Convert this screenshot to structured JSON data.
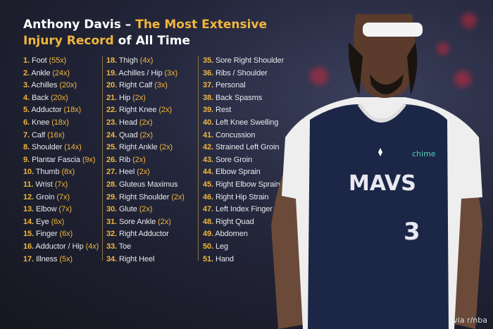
{
  "title": {
    "line1_white": "Anthony Davis – ",
    "line1_gold": "The Most Extensive",
    "line2_gold": "Injury Record",
    "line2_white": " of All Time"
  },
  "injuries": [
    {
      "rank": "1.",
      "name": "Foot",
      "count": "(55x)"
    },
    {
      "rank": "2.",
      "name": "Ankle",
      "count": "(24x)"
    },
    {
      "rank": "3.",
      "name": "Achilles",
      "count": "(20x)"
    },
    {
      "rank": "4.",
      "name": "Back",
      "count": "(20x)"
    },
    {
      "rank": "5.",
      "name": "Adductor",
      "count": "(18x)"
    },
    {
      "rank": "6.",
      "name": "Knee",
      "count": "(18x)"
    },
    {
      "rank": "7.",
      "name": "Calf",
      "count": "(16x)"
    },
    {
      "rank": "8.",
      "name": "Shoulder",
      "count": "(14x)"
    },
    {
      "rank": "9.",
      "name": "Plantar Fascia",
      "count": "(9x)"
    },
    {
      "rank": "10.",
      "name": "Thumb",
      "count": "(8x)"
    },
    {
      "rank": "11.",
      "name": "Wrist",
      "count": "(7x)"
    },
    {
      "rank": "12.",
      "name": "Groin",
      "count": "(7x)"
    },
    {
      "rank": "13.",
      "name": "Elbow",
      "count": "(7x)"
    },
    {
      "rank": "14.",
      "name": "Eye",
      "count": "(6x)"
    },
    {
      "rank": "15.",
      "name": "Finger",
      "count": "(6x)"
    },
    {
      "rank": "16.",
      "name": "Adductor / Hip",
      "count": "(4x)"
    },
    {
      "rank": "17.",
      "name": "Illness",
      "count": "(5x)"
    },
    {
      "rank": "18.",
      "name": "Thigh",
      "count": "(4x)"
    },
    {
      "rank": "19.",
      "name": "Achilles / Hip",
      "count": "(3x)"
    },
    {
      "rank": "20.",
      "name": "Right Calf",
      "count": "(3x)"
    },
    {
      "rank": "21.",
      "name": "Hip",
      "count": "(2x)"
    },
    {
      "rank": "22.",
      "name": "Right Knee",
      "count": "(2x)"
    },
    {
      "rank": "23.",
      "name": "Head",
      "count": "(2x)"
    },
    {
      "rank": "24.",
      "name": "Quad",
      "count": "(2x)"
    },
    {
      "rank": "25.",
      "name": "Right Ankle",
      "count": "(2x)"
    },
    {
      "rank": "26.",
      "name": "Rib",
      "count": "(2x)"
    },
    {
      "rank": "27.",
      "name": "Heel",
      "count": "(2x)"
    },
    {
      "rank": "28.",
      "name": "Gluteus Maximus",
      "count": ""
    },
    {
      "rank": "29.",
      "name": "Right Shoulder",
      "count": "(2x)"
    },
    {
      "rank": "30.",
      "name": "Glute",
      "count": "(2x)"
    },
    {
      "rank": "31.",
      "name": "Sore Ankle",
      "count": "(2x)"
    },
    {
      "rank": "32.",
      "name": "Right Adductor",
      "count": ""
    },
    {
      "rank": "33.",
      "name": "Toe",
      "count": ""
    },
    {
      "rank": "34.",
      "name": "Right Heel",
      "count": ""
    },
    {
      "rank": "35.",
      "name": "Sore Right Shoulder",
      "count": ""
    },
    {
      "rank": "36.",
      "name": "Ribs / Shoulder",
      "count": ""
    },
    {
      "rank": "37.",
      "name": "Personal",
      "count": ""
    },
    {
      "rank": "38.",
      "name": "Back Spasms",
      "count": ""
    },
    {
      "rank": "39.",
      "name": "Rest",
      "count": ""
    },
    {
      "rank": "40.",
      "name": "Left Knee Swelling",
      "count": ""
    },
    {
      "rank": "41.",
      "name": "Concussion",
      "count": ""
    },
    {
      "rank": "42.",
      "name": "Strained Left Groin",
      "count": ""
    },
    {
      "rank": "43.",
      "name": "Sore Groin",
      "count": ""
    },
    {
      "rank": "44.",
      "name": "Elbow Sprain",
      "count": ""
    },
    {
      "rank": "45.",
      "name": "Right Elbow Sprain",
      "count": ""
    },
    {
      "rank": "46.",
      "name": "Right Hip Strain",
      "count": ""
    },
    {
      "rank": "47.",
      "name": "Left Index Finger",
      "count": ""
    },
    {
      "rank": "48.",
      "name": "Right Quad",
      "count": ""
    },
    {
      "rank": "49.",
      "name": "Abdomen",
      "count": ""
    },
    {
      "rank": "50.",
      "name": "Leg",
      "count": ""
    },
    {
      "rank": "51.",
      "name": "Hand",
      "count": ""
    }
  ],
  "jersey": {
    "team": "MAVS",
    "number": "3",
    "sponsor": "chime"
  },
  "credit": "via r/nba",
  "colors": {
    "accent": "#f2b63c",
    "jersey": "#1c2747",
    "background": "#23263a"
  }
}
